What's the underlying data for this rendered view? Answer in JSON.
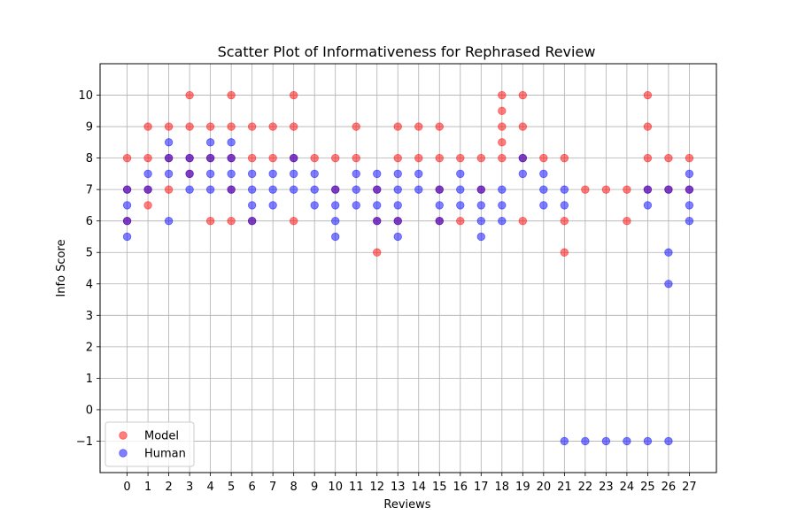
{
  "chart_data": {
    "type": "scatter",
    "title": "Scatter Plot of Informativeness for Rephrased Review",
    "xlabel": "Reviews",
    "ylabel": "Info Score",
    "xlim": [
      -1.3,
      28.3
    ],
    "ylim": [
      -2,
      11
    ],
    "xticks": [
      0,
      1,
      2,
      3,
      4,
      5,
      6,
      7,
      8,
      9,
      10,
      11,
      12,
      13,
      14,
      15,
      16,
      17,
      18,
      19,
      20,
      21,
      22,
      23,
      24,
      25,
      26,
      27
    ],
    "yticks": [
      -1,
      0,
      1,
      2,
      3,
      4,
      5,
      6,
      7,
      8,
      9,
      10
    ],
    "grid": true,
    "legend_position": "lower-left",
    "series": [
      {
        "name": "Model",
        "color": "#ff0000",
        "alpha": 0.5,
        "points": [
          [
            0,
            8
          ],
          [
            0,
            7
          ],
          [
            0,
            6
          ],
          [
            1,
            9
          ],
          [
            1,
            8
          ],
          [
            1,
            7
          ],
          [
            1,
            6.5
          ],
          [
            2,
            9
          ],
          [
            2,
            8
          ],
          [
            2,
            7
          ],
          [
            3,
            10
          ],
          [
            3,
            9
          ],
          [
            3,
            8
          ],
          [
            3,
            7.5
          ],
          [
            4,
            9
          ],
          [
            4,
            8
          ],
          [
            4,
            6
          ],
          [
            5,
            10
          ],
          [
            5,
            9
          ],
          [
            5,
            8
          ],
          [
            5,
            7
          ],
          [
            5,
            6
          ],
          [
            6,
            9
          ],
          [
            6,
            8
          ],
          [
            6,
            6
          ],
          [
            7,
            9
          ],
          [
            7,
            8
          ],
          [
            8,
            10
          ],
          [
            8,
            9
          ],
          [
            8,
            8
          ],
          [
            8,
            6
          ],
          [
            9,
            8
          ],
          [
            10,
            8
          ],
          [
            10,
            7
          ],
          [
            11,
            9
          ],
          [
            11,
            8
          ],
          [
            12,
            7
          ],
          [
            12,
            6
          ],
          [
            12,
            5
          ],
          [
            13,
            9
          ],
          [
            13,
            8
          ],
          [
            13,
            6
          ],
          [
            14,
            9
          ],
          [
            14,
            8
          ],
          [
            15,
            9
          ],
          [
            15,
            8
          ],
          [
            15,
            7
          ],
          [
            15,
            6
          ],
          [
            16,
            8
          ],
          [
            16,
            6
          ],
          [
            17,
            8
          ],
          [
            17,
            7
          ],
          [
            18,
            10
          ],
          [
            18,
            9.5
          ],
          [
            18,
            9
          ],
          [
            18,
            8.5
          ],
          [
            18,
            8
          ],
          [
            19,
            10
          ],
          [
            19,
            9
          ],
          [
            19,
            8
          ],
          [
            19,
            6
          ],
          [
            20,
            8
          ],
          [
            21,
            8
          ],
          [
            21,
            6
          ],
          [
            21,
            5
          ],
          [
            22,
            7
          ],
          [
            23,
            7
          ],
          [
            24,
            7
          ],
          [
            24,
            6
          ],
          [
            25,
            10
          ],
          [
            25,
            9
          ],
          [
            25,
            8
          ],
          [
            25,
            7
          ],
          [
            26,
            8
          ],
          [
            26,
            7
          ],
          [
            27,
            8
          ],
          [
            27,
            7
          ]
        ]
      },
      {
        "name": "Human",
        "color": "#0000ff",
        "alpha": 0.5,
        "points": [
          [
            0,
            7
          ],
          [
            0,
            6.5
          ],
          [
            0,
            6
          ],
          [
            0,
            5.5
          ],
          [
            1,
            7.5
          ],
          [
            1,
            7
          ],
          [
            2,
            8.5
          ],
          [
            2,
            8
          ],
          [
            2,
            7.5
          ],
          [
            2,
            6
          ],
          [
            3,
            8
          ],
          [
            3,
            7.5
          ],
          [
            3,
            7
          ],
          [
            4,
            8.5
          ],
          [
            4,
            8
          ],
          [
            4,
            7.5
          ],
          [
            4,
            7
          ],
          [
            5,
            8.5
          ],
          [
            5,
            8
          ],
          [
            5,
            7.5
          ],
          [
            5,
            7
          ],
          [
            6,
            7.5
          ],
          [
            6,
            7
          ],
          [
            6,
            6.5
          ],
          [
            6,
            6
          ],
          [
            7,
            7.5
          ],
          [
            7,
            7
          ],
          [
            7,
            6.5
          ],
          [
            8,
            8
          ],
          [
            8,
            7.5
          ],
          [
            8,
            7
          ],
          [
            9,
            7.5
          ],
          [
            9,
            7
          ],
          [
            9,
            6.5
          ],
          [
            10,
            7
          ],
          [
            10,
            6.5
          ],
          [
            10,
            6
          ],
          [
            10,
            5.5
          ],
          [
            11,
            7.5
          ],
          [
            11,
            7
          ],
          [
            11,
            6.5
          ],
          [
            12,
            7.5
          ],
          [
            12,
            7
          ],
          [
            12,
            6.5
          ],
          [
            12,
            6
          ],
          [
            13,
            7.5
          ],
          [
            13,
            7
          ],
          [
            13,
            6.5
          ],
          [
            13,
            6
          ],
          [
            13,
            5.5
          ],
          [
            14,
            7.5
          ],
          [
            14,
            7
          ],
          [
            15,
            7
          ],
          [
            15,
            6.5
          ],
          [
            15,
            6
          ],
          [
            16,
            7.5
          ],
          [
            16,
            7
          ],
          [
            16,
            6.5
          ],
          [
            17,
            7
          ],
          [
            17,
            6.5
          ],
          [
            17,
            6
          ],
          [
            17,
            5.5
          ],
          [
            18,
            7
          ],
          [
            18,
            6.5
          ],
          [
            18,
            6
          ],
          [
            19,
            8
          ],
          [
            19,
            7.5
          ],
          [
            20,
            7.5
          ],
          [
            20,
            7
          ],
          [
            20,
            6.5
          ],
          [
            21,
            7
          ],
          [
            21,
            6.5
          ],
          [
            21,
            -1
          ],
          [
            22,
            -1
          ],
          [
            23,
            -1
          ],
          [
            24,
            -1
          ],
          [
            25,
            7
          ],
          [
            25,
            6.5
          ],
          [
            25,
            -1
          ],
          [
            26,
            7
          ],
          [
            26,
            5
          ],
          [
            26,
            4
          ],
          [
            26,
            -1
          ],
          [
            27,
            7.5
          ],
          [
            27,
            7
          ],
          [
            27,
            6.5
          ],
          [
            27,
            6
          ]
        ]
      }
    ]
  }
}
